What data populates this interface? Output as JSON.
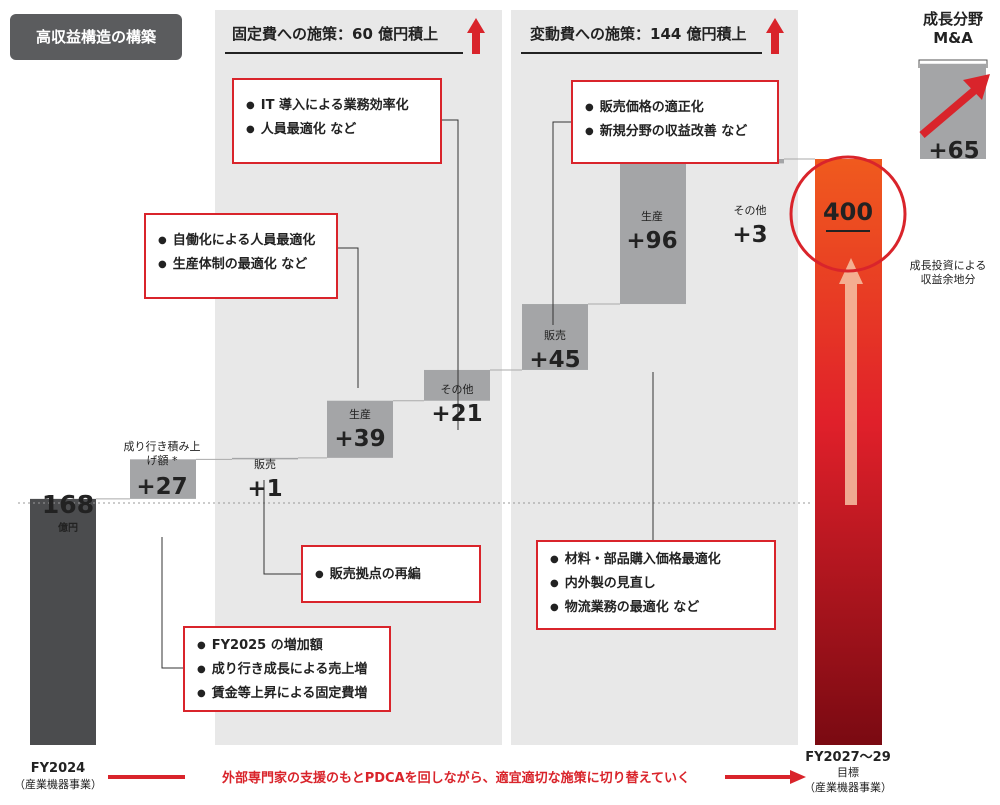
{
  "colors": {
    "accent": "#d9242b",
    "bar": "#a4a5a7",
    "base_bar": "#4b4c4e",
    "panel": "#e8e8e8"
  },
  "badge": "高収益構造の構築",
  "fixed_panel": {
    "title": "固定費への施策：60 億円積上"
  },
  "variable_panel": {
    "title": "変動費への施策：144 億円積上"
  },
  "growth": {
    "title_line1": "成長分野",
    "title_line2": "M&A",
    "value": "+65",
    "caption_line1": "成長投資による",
    "caption_line2": "収益余地分",
    "arrow_icon": "up-right-arrow-icon"
  },
  "start": {
    "value": "168",
    "unit": "億円",
    "label": "FY2024",
    "sublabel": "（産業機器事業）"
  },
  "target": {
    "value": "400",
    "label": "FY2027〜29",
    "sublabel1": "目標",
    "sublabel2": "（産業機器事業）"
  },
  "boxes": {
    "fixed_top": [
      "IT 導入による業務効率化",
      "人員最適化 など"
    ],
    "fixed_mid": [
      "自働化による人員最適化",
      "生産体制の最適化 など"
    ],
    "sales_base": [
      "販売拠点の再編"
    ],
    "natural": [
      "FY2025 の増加額",
      "成り行き成長による売上増",
      "賃金等上昇による固定費増"
    ],
    "var_top": [
      "販売価格の適正化",
      "新規分野の収益改善 など"
    ],
    "var_bottom": [
      "材料・部品購入価格最適化",
      "内外製の見直し",
      "物流業務の最適化 など"
    ]
  },
  "bottom_message": "外部専門家の支援のもとPDCAを回しながら、適宜適切な施策に切り替えていく",
  "chart_data": {
    "type": "bar",
    "subtype": "waterfall",
    "unit": "億円",
    "start": {
      "label": "FY2024",
      "value": 168
    },
    "steps": [
      {
        "label": "成り行き積み上げ額 *",
        "value": 27,
        "display": "+27"
      },
      {
        "label": "販売",
        "value": 1,
        "display": "+1"
      },
      {
        "label": "生産",
        "value": 39,
        "display": "+39"
      },
      {
        "label": "その他",
        "value": 21,
        "display": "+21"
      },
      {
        "label": "販売",
        "value": 45,
        "display": "+45"
      },
      {
        "label": "生産",
        "value": 96,
        "display": "+96"
      },
      {
        "label": "その他",
        "value": 3,
        "display": "+3"
      }
    ],
    "target": {
      "label": "FY2027〜29 目標",
      "value": 400
    },
    "extra": {
      "label": "成長分野 M&A",
      "value": 65,
      "display": "+65"
    }
  }
}
